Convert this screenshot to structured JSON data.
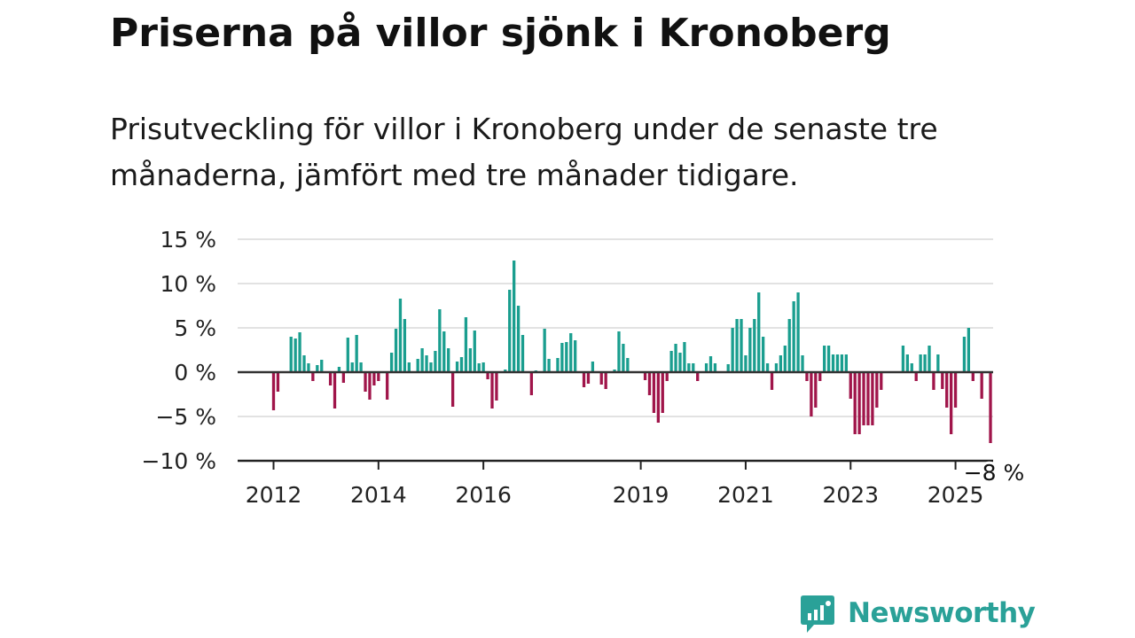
{
  "header": {
    "title": "Priserna på villor sjönk i Kronoberg",
    "subtitle": "Prisutveckling för villor i Kronoberg under de senaste tre månaderna, jämfört med tre månader tidigare."
  },
  "brand": {
    "name": "Newsworthy",
    "color": "#2aa198"
  },
  "chart_data": {
    "type": "bar",
    "colors": {
      "positive": "#1a9e8f",
      "negative": "#a0154a",
      "grid": "#d9d9d9",
      "axis": "#222222"
    },
    "x_ticks": [
      "2012",
      "2014",
      "2016",
      "2019",
      "2021",
      "2023",
      "2025"
    ],
    "y_ticks": [
      "15 %",
      "10 %",
      "5 %",
      "0 %",
      "−5 %",
      "−10 %"
    ],
    "y_tick_values": [
      15,
      10,
      5,
      0,
      -5,
      -10
    ],
    "ylim": [
      -10,
      15
    ],
    "grid": true,
    "last_value_label": "−8 %",
    "start": "2012-01",
    "end": "2025-03",
    "frequency": "monthly",
    "unit": "%",
    "values": [
      -4.3,
      -2.2,
      0,
      0,
      4.0,
      3.8,
      4.5,
      1.9,
      1.0,
      -1.0,
      0.8,
      1.4,
      0,
      -1.5,
      -4.1,
      0.6,
      -1.2,
      3.9,
      1.1,
      4.2,
      1.1,
      -2.2,
      -3.1,
      -1.5,
      -1.0,
      0,
      -3.1,
      2.2,
      4.9,
      8.3,
      6.0,
      1.1,
      0,
      1.5,
      2.7,
      1.9,
      1.1,
      2.4,
      7.1,
      4.6,
      2.7,
      -3.9,
      1.2,
      1.7,
      6.2,
      2.7,
      4.7,
      1.0,
      1.1,
      -0.8,
      -4.1,
      -3.2,
      0,
      0.3,
      9.3,
      12.6,
      7.5,
      4.2,
      0,
      -2.6,
      0.2,
      0,
      4.9,
      1.5,
      0,
      1.6,
      3.3,
      3.4,
      4.4,
      3.6,
      0,
      -1.7,
      -1.3,
      1.2,
      0,
      -1.4,
      -1.9,
      0,
      0.3,
      4.6,
      3.2,
      1.6,
      0,
      0.1,
      0,
      -0.9,
      -2.6,
      -4.6,
      -5.7,
      -4.6,
      -1.0,
      2.4,
      3.2,
      2.2,
      3.4,
      1.0,
      1.0,
      -1.0,
      0,
      1.0,
      1.8,
      1.0,
      0,
      0,
      0.9,
      5.0,
      6.0,
      6.0,
      1.9,
      5.0,
      6.0,
      9.0,
      4.0,
      1.0,
      -2.0,
      1.0,
      1.9,
      3.0,
      6.0,
      8.0,
      9.0,
      1.9,
      -1.0,
      -5.0,
      -4.0,
      -1.0,
      3.0,
      3.0,
      2.0,
      2.0,
      2.0,
      2.0,
      -3.0,
      -7.0,
      -7.0,
      -6.0,
      -6.0,
      -6.0,
      -4.0,
      -2.0,
      0,
      0,
      0,
      0,
      3.0,
      2.0,
      1.0,
      -1.0,
      2.0,
      2.0,
      3.0,
      -2.0,
      2.0,
      -1.9,
      -4.0,
      -7.0,
      -4.0,
      0,
      4.0,
      5.0,
      -1.0,
      0,
      -3.0,
      0,
      -8.0
    ]
  }
}
